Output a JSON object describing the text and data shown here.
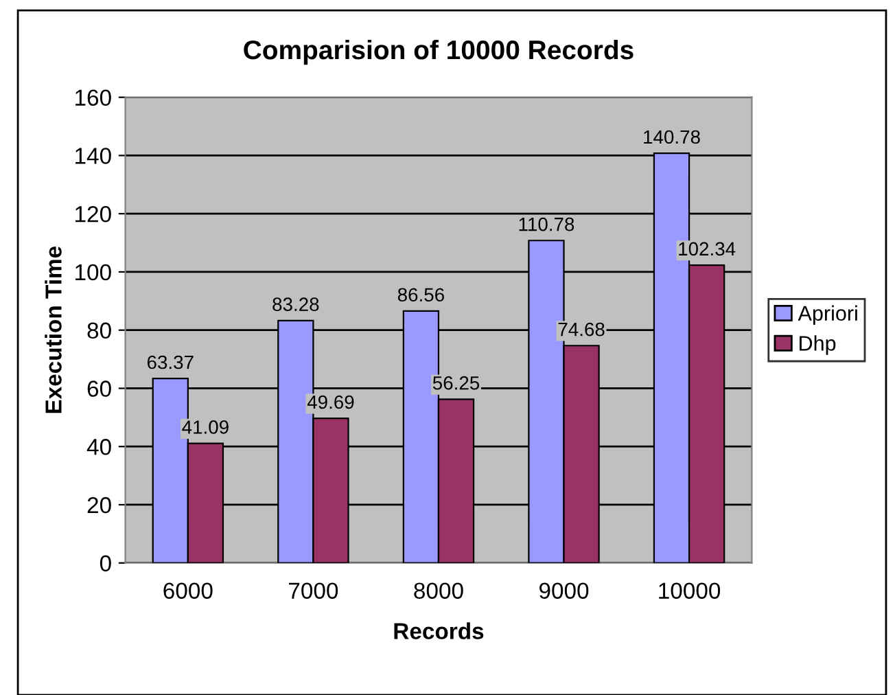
{
  "chart_data": {
    "type": "bar",
    "title": "Comparision of 10000 Records",
    "xlabel": "Records",
    "ylabel": "Execution Time",
    "categories": [
      "6000",
      "7000",
      "8000",
      "9000",
      "10000"
    ],
    "series": [
      {
        "name": "Apriori",
        "color": "#9999ff",
        "values": [
          63.37,
          83.28,
          86.56,
          110.78,
          140.78
        ]
      },
      {
        "name": "Dhp",
        "color": "#993366",
        "values": [
          41.09,
          49.69,
          56.25,
          74.68,
          102.34
        ]
      }
    ],
    "ylim": [
      0,
      160
    ],
    "yticks": [
      0,
      20,
      40,
      60,
      80,
      100,
      120,
      140,
      160
    ],
    "grid": "y",
    "legend": "right",
    "data_labels": true
  }
}
